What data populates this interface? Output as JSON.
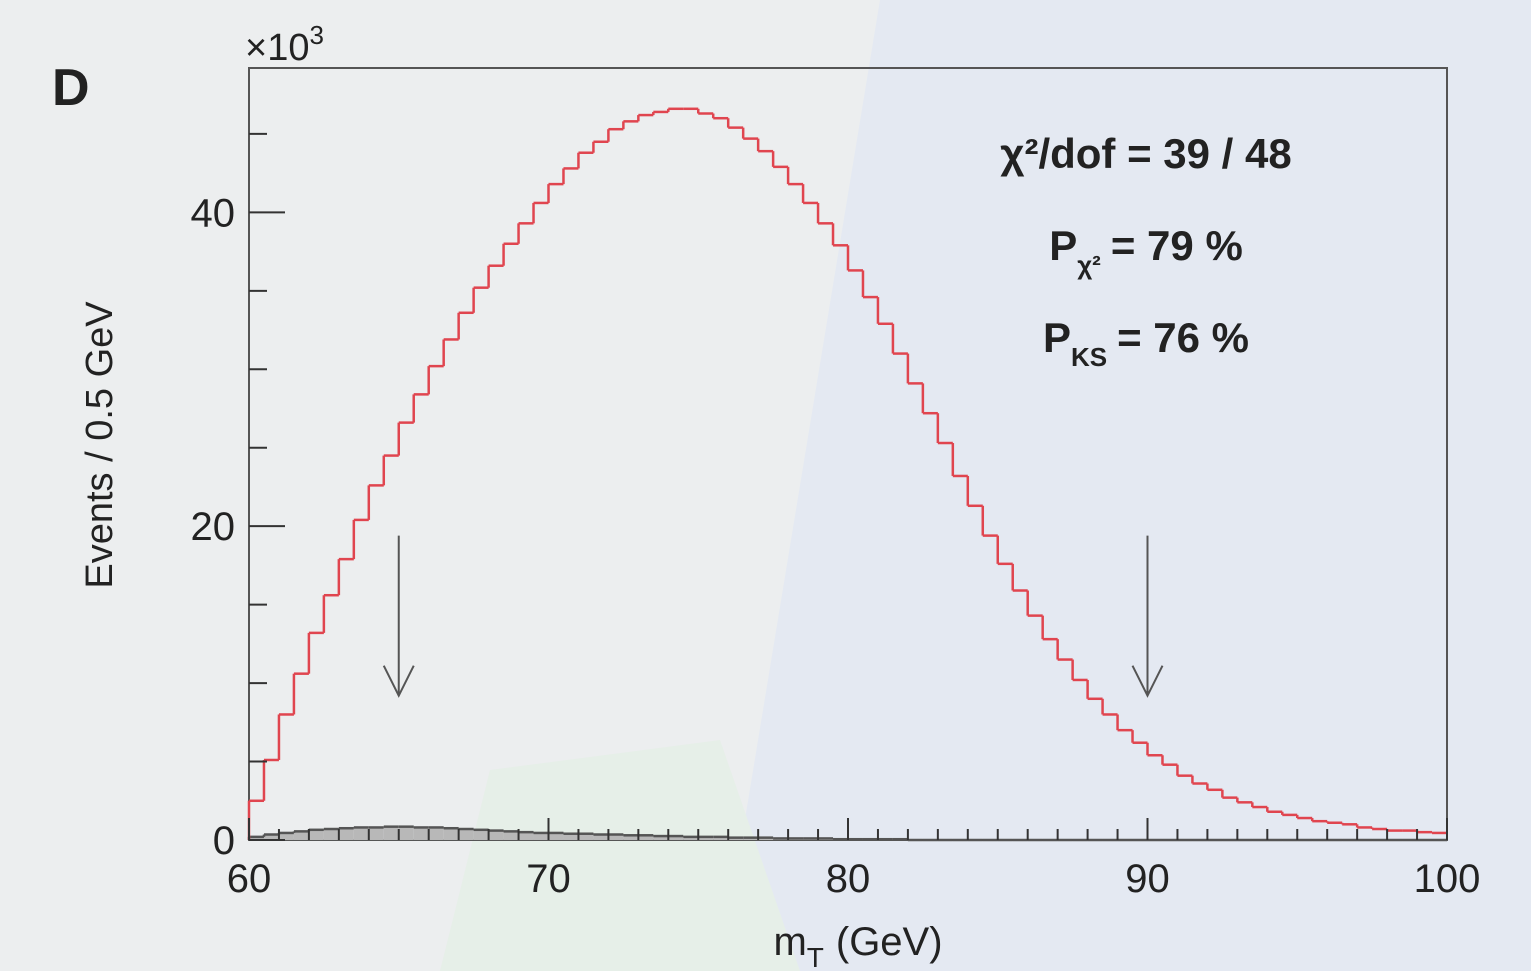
{
  "chart_data": {
    "type": "histogram",
    "panel_label": "D",
    "y_multiplier": {
      "base": "×10",
      "exp": "3"
    },
    "y_label": "Events / 0.5 GeV",
    "x_label": {
      "main": "m",
      "sub": "T",
      "tail": "(GeV)"
    },
    "bins": [
      60,
      60.5,
      61,
      61.5,
      62,
      62.5,
      63,
      63.5,
      64,
      64.5,
      65,
      65.5,
      66,
      66.5,
      67,
      67.5,
      68,
      68.5,
      69,
      69.5,
      70,
      70.5,
      71,
      71.5,
      72,
      72.5,
      73,
      73.5,
      74,
      74.5,
      75,
      75.5,
      76,
      76.5,
      77,
      77.5,
      78,
      78.5,
      79,
      79.5,
      80,
      80.5,
      81,
      81.5,
      82,
      82.5,
      83,
      83.5,
      84,
      84.5,
      85,
      85.5,
      86,
      86.5,
      87,
      87.5,
      88,
      88.5,
      89,
      89.5,
      90,
      90.5,
      91,
      91.5,
      92,
      92.5,
      93,
      93.5,
      94,
      94.5,
      95,
      95.5,
      96,
      96.5,
      97,
      97.5,
      98,
      98.5,
      99,
      99.5,
      100
    ],
    "series": [
      {
        "color": "#e0454f",
        "fill": "none",
        "values": [
          2.5,
          5.1,
          8.0,
          10.6,
          13.2,
          15.6,
          17.9,
          20.4,
          22.6,
          24.5,
          26.6,
          28.4,
          30.2,
          31.9,
          33.6,
          35.2,
          36.6,
          38.0,
          39.3,
          40.6,
          41.8,
          42.8,
          43.8,
          44.5,
          45.3,
          45.8,
          46.2,
          46.4,
          46.6,
          46.6,
          46.3,
          46.0,
          45.4,
          44.7,
          43.9,
          42.9,
          41.8,
          40.6,
          39.3,
          37.9,
          36.3,
          34.6,
          32.9,
          31.0,
          29.1,
          27.2,
          25.3,
          23.2,
          21.3,
          19.4,
          17.6,
          15.9,
          14.3,
          12.8,
          11.5,
          10.2,
          9.0,
          8.0,
          7.0,
          6.2,
          5.4,
          4.8,
          4.1,
          3.6,
          3.2,
          2.7,
          2.4,
          2.1,
          1.8,
          1.6,
          1.4,
          1.2,
          1.1,
          1.0,
          0.8,
          0.7,
          0.6,
          0.6,
          0.5,
          0.45
        ]
      },
      {
        "color": "#555555",
        "fill": "#b8b8b8",
        "values": [
          0.2,
          0.35,
          0.45,
          0.55,
          0.65,
          0.7,
          0.75,
          0.8,
          0.8,
          0.85,
          0.85,
          0.8,
          0.8,
          0.75,
          0.7,
          0.65,
          0.6,
          0.55,
          0.5,
          0.45,
          0.45,
          0.4,
          0.4,
          0.35,
          0.35,
          0.3,
          0.3,
          0.25,
          0.25,
          0.2,
          0.2,
          0.2,
          0.15,
          0.15,
          0.15,
          0.1,
          0.1,
          0.1,
          0.1,
          0.05,
          0.05,
          0.05,
          0.05,
          0.05,
          0,
          0,
          0,
          0,
          0,
          0,
          0,
          0,
          0,
          0,
          0,
          0,
          0,
          0,
          0,
          0,
          0,
          0,
          0,
          0,
          0,
          0,
          0,
          0,
          0,
          0,
          0,
          0,
          0,
          0,
          0,
          0,
          0,
          0,
          0,
          0
        ]
      }
    ],
    "xlim": [
      60,
      100
    ],
    "ylim": [
      0,
      49.2
    ],
    "xticks": [
      60,
      70,
      80,
      90,
      100
    ],
    "yticks": [
      0,
      20,
      40
    ],
    "xminor": [
      61,
      62,
      63,
      64,
      65,
      66,
      67,
      68,
      69,
      71,
      72,
      73,
      74,
      75,
      76,
      77,
      78,
      79,
      81,
      82,
      83,
      84,
      85,
      86,
      87,
      88,
      89,
      91,
      92,
      93,
      94,
      95,
      96,
      97,
      98,
      99
    ],
    "yminor": [
      5,
      10,
      15,
      25,
      30,
      35,
      45
    ],
    "arrows": [
      {
        "x": 65,
        "top": 19.4,
        "bottom": 9.2
      },
      {
        "x": 90,
        "top": 19.4,
        "bottom": 9.2
      }
    ],
    "annotations": [
      {
        "main": "χ²/dof = 39 / 48"
      },
      {
        "main": "P",
        "sub": "χ²",
        "tail": "= 79 %"
      },
      {
        "main": "P",
        "sub": "KS",
        "tail": "= 76 %"
      }
    ]
  }
}
